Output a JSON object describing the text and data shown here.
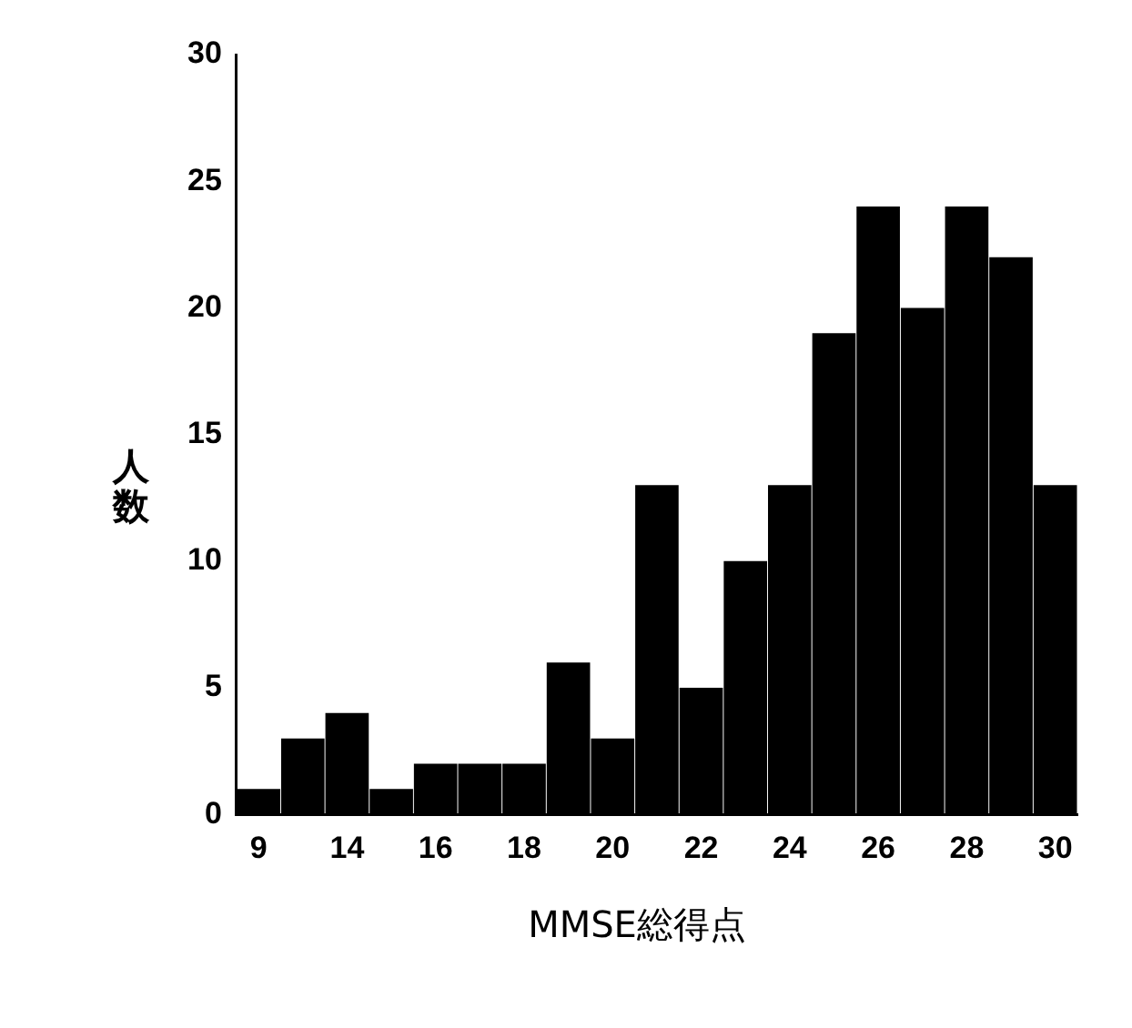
{
  "chart_data": {
    "type": "bar",
    "xlabel": "MMSE総得点",
    "ylabel": "人数",
    "categories": [
      "9",
      null,
      "14",
      null,
      "16",
      null,
      "18",
      null,
      "20",
      null,
      "22",
      null,
      "24",
      null,
      "26",
      null,
      "28",
      null,
      "30"
    ],
    "values": [
      1,
      3,
      4,
      1,
      2,
      2,
      2,
      6,
      3,
      13,
      5,
      10,
      13,
      19,
      24,
      20,
      24,
      22,
      13
    ],
    "color": "#000000",
    "ylim": [
      0,
      30
    ],
    "yticks": [
      0,
      5,
      10,
      15,
      20,
      25,
      30
    ],
    "grid": false,
    "legend": false
  }
}
